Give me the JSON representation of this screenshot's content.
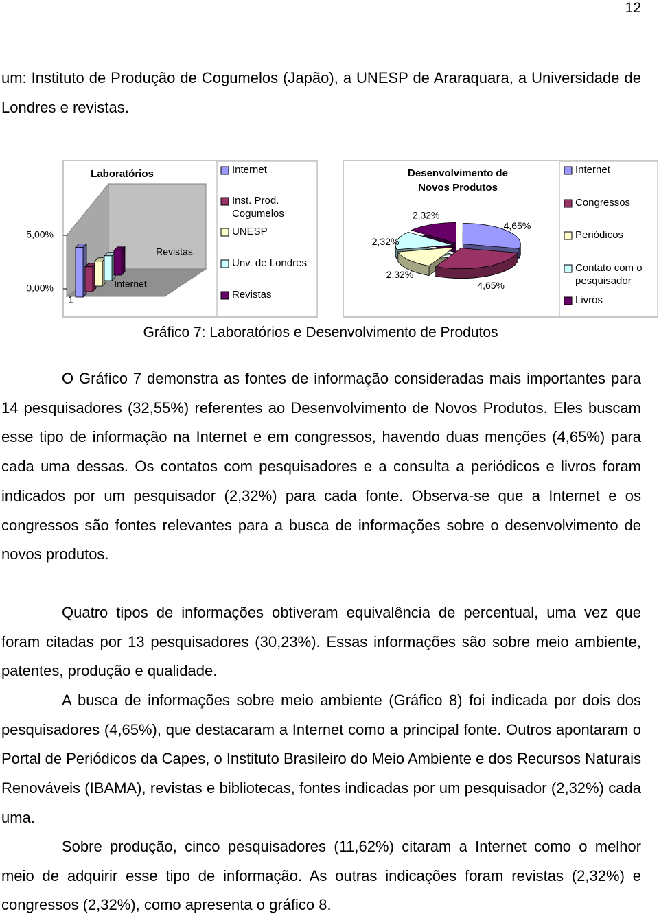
{
  "page_number": "12",
  "paragraphs": [
    "um: Instituto de Produção de Cogumelos (Japão), a UNESP de Araraquara, a Universidade de Londres e revistas.",
    "O Gráfico 7 demonstra as fontes de informação consideradas mais importantes para 14 pesquisadores (32,55%) referentes ao Desenvolvimento de Novos Produtos. Eles buscam esse tipo de informação na Internet e em congressos, havendo duas menções (4,65%) para cada uma dessas. Os contatos com pesquisadores e a consulta a periódicos e livros foram indicados por um pesquisador (2,32%) para cada fonte. Observa-se que a Internet e os congressos são fontes relevantes para a busca de informações sobre o desenvolvimento de novos produtos.",
    "Quatro tipos de informações obtiveram equivalência de percentual, uma vez que foram citadas por 13 pesquisadores (30,23%). Essas informações são sobre meio ambiente, patentes, produção e qualidade.",
    "A busca de informações sobre meio ambiente (Gráfico 8) foi indicada por dois dos pesquisadores (4,65%), que destacaram a Internet como a principal fonte. Outros apontaram o Portal de Periódicos da Capes, o Instituto Brasileiro do Meio Ambiente e dos Recursos Naturais Renováveis (IBAMA), revistas e bibliotecas, fontes indicadas por um pesquisador (2,32%) cada uma.",
    "Sobre produção, cinco pesquisadores (11,62%) citaram a Internet como o melhor meio de adquirir esse tipo de informação. As outras indicações foram revistas (2,32%) e congressos (2,32%), como apresenta o gráfico 8."
  ],
  "caption": "Gráfico 7: Laboratórios e Desenvolvimento de Produtos",
  "chart_data": [
    {
      "type": "bar3d",
      "title": "Laboratórios",
      "categories": [
        "1"
      ],
      "series": [
        {
          "name": "Internet",
          "color": "#9999ff",
          "values": [
            4.65
          ]
        },
        {
          "name": "Inst. Prod. Cogumelos",
          "color": "#993366",
          "values": [
            2.32
          ]
        },
        {
          "name": "UNESP",
          "color": "#ffffcc",
          "values": [
            2.32
          ]
        },
        {
          "name": "Unv. de Londres",
          "color": "#ccffff",
          "values": [
            2.32
          ]
        },
        {
          "name": "Revistas",
          "color": "#660066",
          "values": [
            2.32
          ]
        }
      ],
      "ylim": [
        0,
        5
      ],
      "yticks": [
        {
          "value": 0,
          "label": "0,00%"
        },
        {
          "value": 5,
          "label": "5,00%"
        }
      ],
      "legend": "right"
    },
    {
      "type": "pie",
      "title": "Desenvolvimento de Novos Produtos",
      "categories": [
        "Internet",
        "Congressos",
        "Periódicos",
        "Contato com o pesquisador",
        "Livros"
      ],
      "values": [
        4.65,
        4.65,
        2.32,
        2.32,
        2.32
      ],
      "value_labels": [
        "4,65%",
        "4,65%",
        "2,32%",
        "2,32%",
        "2,32%"
      ],
      "colors": [
        "#9999ff",
        "#993366",
        "#ffffcc",
        "#ccffff",
        "#660066"
      ],
      "legend": "right"
    }
  ]
}
